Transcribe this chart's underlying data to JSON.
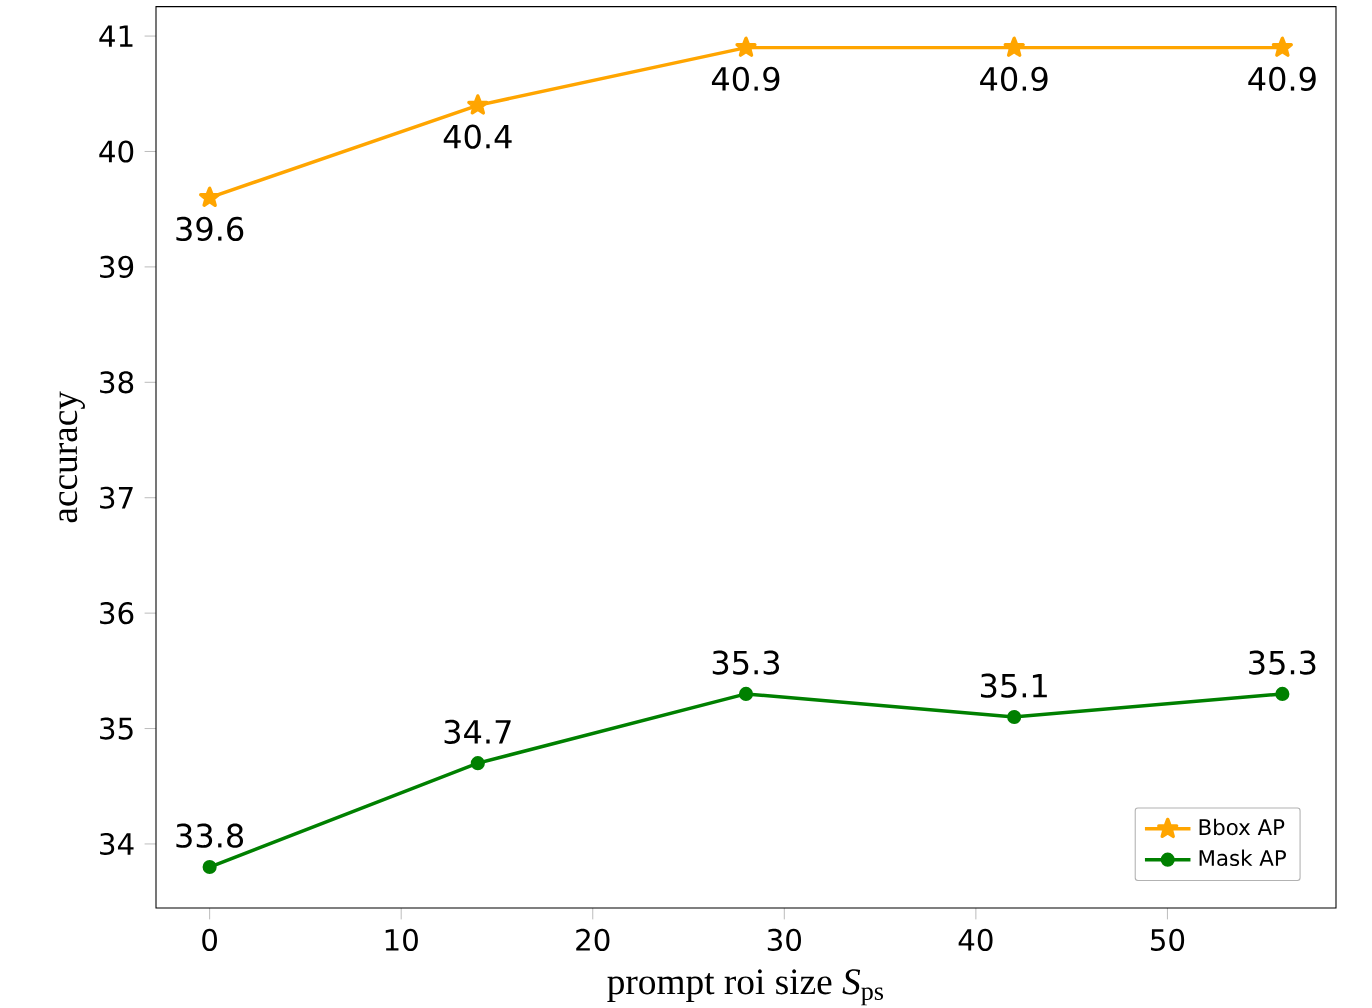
{
  "chart_data": {
    "type": "line",
    "xlabel": "prompt roi size *S*$_{ps}$",
    "ylabel": "accuracy",
    "x": [
      0,
      14,
      28,
      42,
      56
    ],
    "series": [
      {
        "name": "Bbox AP",
        "color": "#ffa500",
        "marker": "star",
        "values": [
          39.6,
          40.4,
          40.9,
          40.9,
          40.9
        ]
      },
      {
        "name": "Mask AP",
        "color": "#008000",
        "marker": "circle",
        "values": [
          33.8,
          34.7,
          35.3,
          35.1,
          35.3
        ]
      }
    ],
    "xlim": [
      -2.8,
      58.8
    ],
    "ylim": [
      33.445,
      41.255
    ],
    "xticks": [
      0,
      10,
      20,
      30,
      40,
      50
    ],
    "yticks": [
      34,
      35,
      36,
      37,
      38,
      39,
      40,
      41
    ],
    "data_labels": true,
    "legend": "bottom right",
    "grid": false
  }
}
